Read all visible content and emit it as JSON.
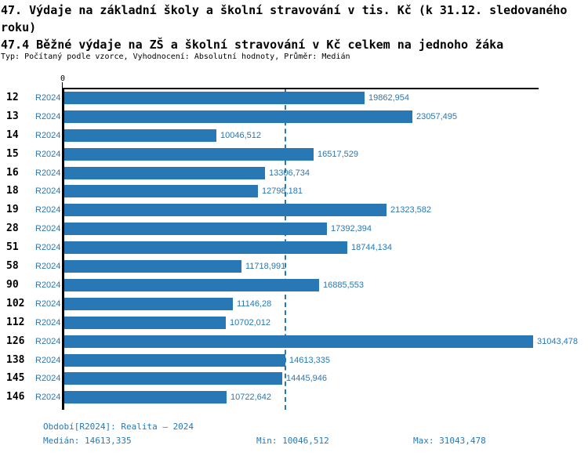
{
  "header": {
    "title_line1": "47. Výdaje na základní školy a školní stravování v tis. Kč (k 31.12. sledovaného roku)",
    "title_line2": "47.4 Běžné výdaje na ZŠ a školní stravování v Kč celkem na jednoho žáka",
    "subtitle": "Typ: Počítaný podle vzorce, Vyhodnocení: Absolutní hodnoty, Průměr: Medián"
  },
  "axis": {
    "zero_label": "0"
  },
  "chart_data": {
    "type": "bar",
    "orientation": "horizontal",
    "title": "47.4 Běžné výdaje na ZŠ a školní stravování v Kč celkem na jednoho žáka",
    "categories": [
      "12",
      "13",
      "14",
      "15",
      "16",
      "18",
      "19",
      "28",
      "51",
      "58",
      "90",
      "102",
      "112",
      "126",
      "138",
      "145",
      "146"
    ],
    "series_label": "R2024",
    "values": [
      19862.954,
      23057.495,
      10046.512,
      16517.529,
      13306.734,
      12798.181,
      21323.582,
      17392.394,
      18744.134,
      11718.991,
      16885.553,
      11146.28,
      10702.012,
      31043.478,
      14613.335,
      14445.946,
      10722.642
    ],
    "value_labels": [
      "19862,954",
      "23057,495",
      "10046,512",
      "16517,529",
      "13306,734",
      "12798,181",
      "21323,582",
      "17392,394",
      "18744,134",
      "11718,991",
      "16885,553",
      "11146,28",
      "10702,012",
      "31043,478",
      "14613,335",
      "14445,946",
      "10722,642"
    ],
    "median": 14613.335,
    "xlim": [
      0,
      31043.478
    ],
    "grid": false,
    "legend_position": "none",
    "bar_color": "#2878b5",
    "median_line_color": "#2878b5",
    "axis_color": "#000000"
  },
  "footer": {
    "period": "Období[R2024]: Realita – 2024",
    "median": "Medián: 14613,335",
    "min": "Min: 10046,512",
    "max": "Max: 31043,478"
  }
}
